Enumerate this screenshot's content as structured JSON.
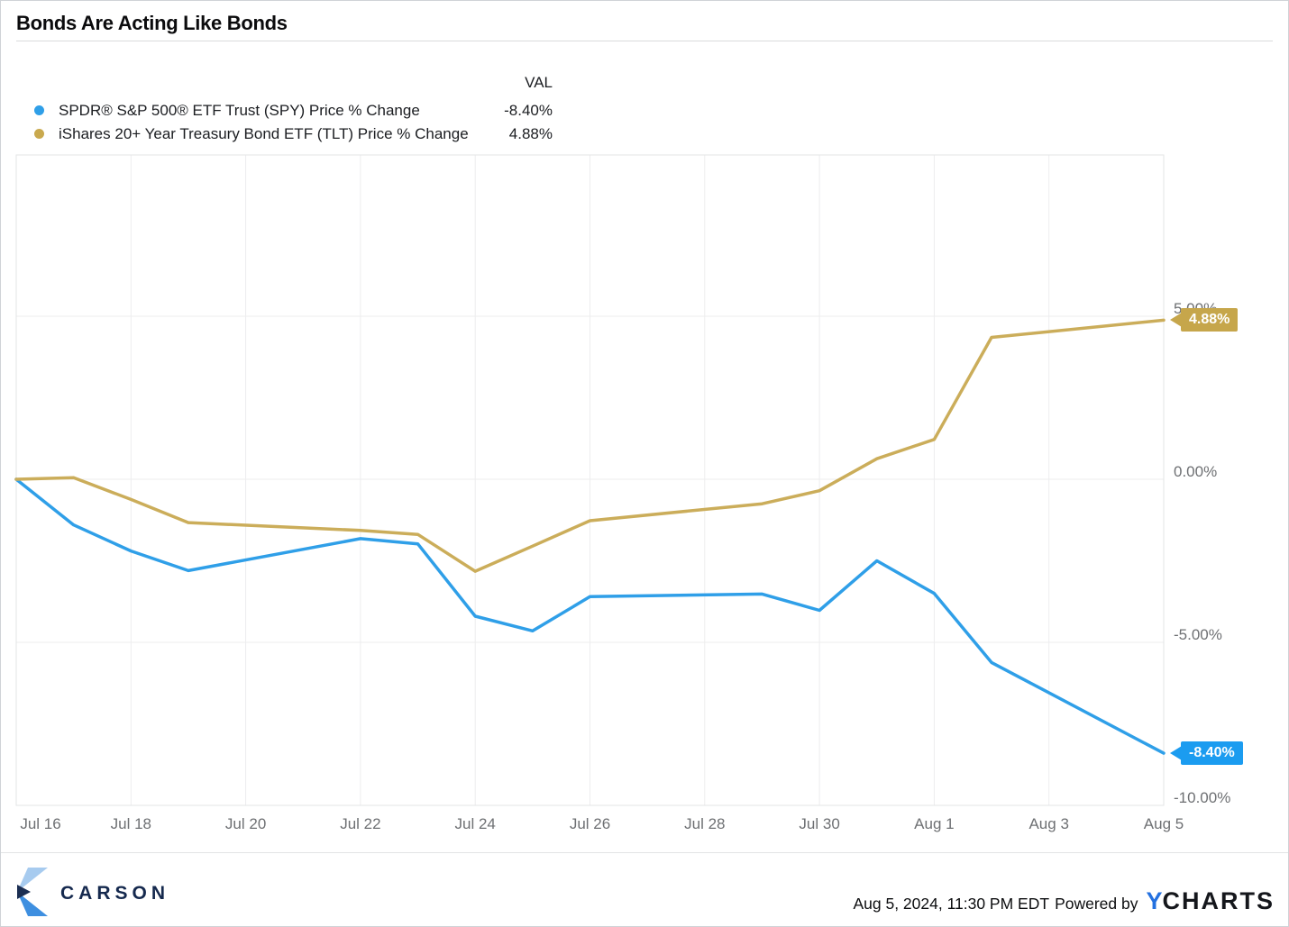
{
  "title": "Bonds Are Acting Like Bonds",
  "legend": {
    "val_header": "VAL",
    "items": [
      {
        "label": "SPDR® S&P 500® ETF Trust (SPY) Price % Change",
        "value": "-8.40%",
        "color": "#2f9fe8"
      },
      {
        "label": "iShares 20+ Year Treasury Bond ETF (TLT) Price % Change",
        "value": "4.88%",
        "color": "#c9a94e"
      }
    ]
  },
  "chart_data": {
    "type": "line",
    "title": "Bonds Are Acting Like Bonds",
    "xlabel": "",
    "ylabel": "",
    "x": [
      "Jul 16",
      "Jul 17",
      "Jul 18",
      "Jul 19",
      "Jul 22",
      "Jul 23",
      "Jul 24",
      "Jul 25",
      "Jul 26",
      "Jul 29",
      "Jul 30",
      "Jul 31",
      "Aug 1",
      "Aug 2",
      "Aug 5"
    ],
    "x_day_offsets": [
      0,
      1,
      2,
      3,
      6,
      7,
      8,
      9,
      10,
      13,
      14,
      15,
      16,
      17,
      20
    ],
    "series": [
      {
        "name": "SPDR® S&P 500® ETF Trust (SPY) Price % Change",
        "color": "#2f9fe8",
        "badge_color": "#1b9cf0",
        "end_label": "-8.40%",
        "values": [
          0,
          -1.4,
          -2.2,
          -2.8,
          -1.82,
          -1.98,
          -4.2,
          -4.65,
          -3.6,
          -3.52,
          -4.02,
          -2.5,
          -3.5,
          -5.62,
          -8.4
        ]
      },
      {
        "name": "iShares 20+ Year Treasury Bond ETF (TLT) Price % Change",
        "color": "#cbad5a",
        "badge_color": "#c6a64b",
        "end_label": "4.88%",
        "values": [
          0,
          0.05,
          -0.62,
          -1.33,
          -1.57,
          -1.69,
          -2.82,
          -2.05,
          -1.27,
          -0.75,
          -0.35,
          0.63,
          1.22,
          4.35,
          4.88
        ]
      }
    ],
    "x_tick_labels": [
      "Jul 16",
      "Jul 18",
      "Jul 20",
      "Jul 22",
      "Jul 24",
      "Jul 26",
      "Jul 28",
      "Jul 30",
      "Aug 1",
      "Aug 3",
      "Aug 5"
    ],
    "x_tick_day_offsets": [
      0,
      2,
      4,
      6,
      8,
      10,
      12,
      14,
      16,
      18,
      20
    ],
    "y_tick_labels": [
      "5.00%",
      "0.00%",
      "-5.00%",
      "-10.00%"
    ],
    "y_tick_values": [
      5,
      0,
      -5,
      -10
    ],
    "xlim": [
      0,
      20
    ],
    "ylim": [
      -10,
      9.945
    ],
    "grid": true,
    "legend_position": "top-left"
  },
  "footer": {
    "brand": "CARSON",
    "timestamp": "Aug 5, 2024, 11:30 PM EDT",
    "powered_by": "Powered by",
    "ycharts_y": "Y",
    "ycharts_rest": "CHARTS"
  }
}
